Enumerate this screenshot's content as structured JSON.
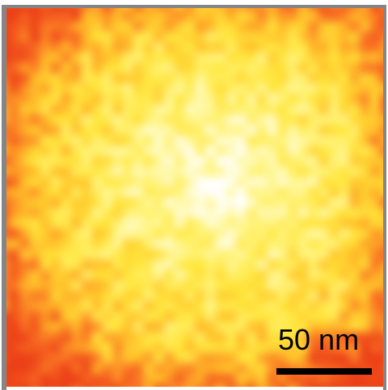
{
  "micrograph": {
    "scale_bar": {
      "label": "50 nm",
      "color": "#000000"
    },
    "palette": {
      "hot_low": "#f04a1c",
      "mid_orange": "#ff9a28",
      "yellow": "#ffe84a",
      "pale_yellow": "#fff7a8",
      "white": "#ffffff",
      "frame": "#858585"
    }
  }
}
